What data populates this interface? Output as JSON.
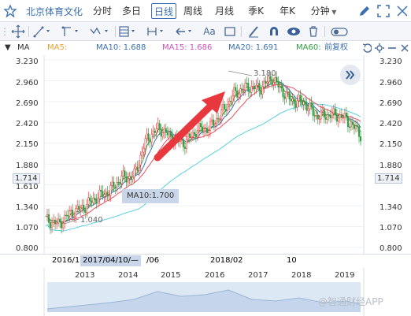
{
  "header": {
    "stock_name": "北京体育文化",
    "tabs": [
      {
        "label": "分时",
        "active": false
      },
      {
        "label": "多日",
        "active": false
      },
      {
        "label": "日线",
        "active": true
      },
      {
        "label": "周线",
        "active": false
      },
      {
        "label": "月线",
        "active": false
      },
      {
        "label": "季K",
        "active": false
      },
      {
        "label": "年K",
        "active": false
      },
      {
        "label": "分钟",
        "active": false
      }
    ]
  },
  "toolbar": {
    "font_label": "Aa"
  },
  "indicators": {
    "label": "MA",
    "ma5": "MA5:",
    "ma10": "MA10: 1.688",
    "ma15": "MA15: 1.686",
    "ma20": "MA20: 1.691",
    "ma60": "MA60:",
    "adjust": "前复权"
  },
  "colors": {
    "ma5": "#f0a030",
    "ma10": "#3a6fb0",
    "ma15": "#d050c0",
    "ma20": "#3a6fb0",
    "ma60": "#2ea040",
    "up": "#e8383d",
    "down": "#2ea040",
    "arrow": "#e8383d"
  },
  "chart_data": {
    "type": "candlestick",
    "x_range": [
      "2016",
      "2019"
    ],
    "ylim": [
      0.8,
      3.23
    ],
    "y_ticks": [
      "3.230",
      "2.960",
      "2.690",
      "2.420",
      "2.150",
      "1.880",
      "1.714",
      "1.610",
      "1.340",
      "1.070",
      "0.800"
    ],
    "current_price": "1.714",
    "high_annotation": "3.180",
    "low_annotation": "1.040",
    "tooltip": "MA10:1.700"
  },
  "timeline": {
    "labels": [
      "2016/1",
      "2017/04/10/—",
      "/06",
      "2018/02",
      "10"
    ]
  },
  "navigator": {
    "years": [
      "2013",
      "2014",
      "2015",
      "2016",
      "2017",
      "2018",
      "2019"
    ]
  },
  "watermark": "@智通财经APP"
}
